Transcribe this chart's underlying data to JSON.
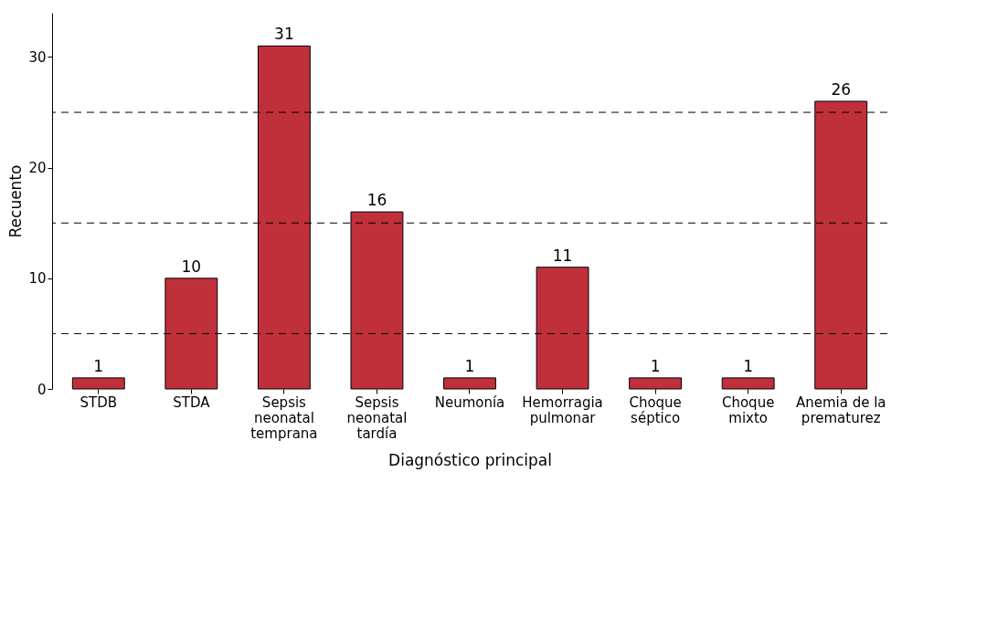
{
  "chart_data": {
    "type": "bar",
    "xlabel": "Diagnóstico principal",
    "ylabel": "Recuento",
    "categories": [
      "STDB",
      "STDA",
      "Sepsis\nneonatal\ntemprana",
      "Sepsis\nneonatal\ntardía",
      "Neumonía",
      "Hemorragia\npulmonar",
      "Choque\nséptico",
      "Choque\nmixto",
      "Anemia de la\nprematurez"
    ],
    "values": [
      1,
      10,
      31,
      16,
      1,
      11,
      1,
      1,
      26
    ],
    "color": "#c0303a",
    "ylim": [
      0,
      34
    ],
    "yticks": [
      0,
      10,
      20,
      30
    ],
    "grid": false,
    "data_labels": true,
    "ref_lines": [
      {
        "axis": "y",
        "value": 5,
        "label": null,
        "line_style": "dashed",
        "color": "#000000"
      },
      {
        "axis": "y",
        "value": 15,
        "label": null,
        "line_style": "dashed",
        "color": "#000000"
      },
      {
        "axis": "y",
        "value": 25,
        "label": null,
        "line_style": "dashed",
        "color": "#000000"
      }
    ]
  }
}
